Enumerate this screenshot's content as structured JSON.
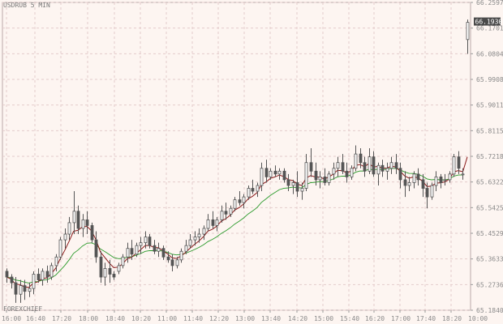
{
  "window": {
    "symbol_label": "USDRUB 5 MIN",
    "watermark": "FOREXCHIEF",
    "current_price": "66.1930"
  },
  "chart_data": {
    "type": "candlestick",
    "title": "USDRUB 5 MIN",
    "y_ticks": [
      "66.2597",
      "66.1701",
      "66.0804",
      "65.9908",
      "65.9011",
      "65.8115",
      "65.7218",
      "65.6322",
      "65.5425",
      "65.4529",
      "65.3633",
      "65.2736",
      "65.1840"
    ],
    "ylim": [
      65.184,
      66.2597
    ],
    "x_ticks": [
      "16:00",
      "16:40",
      "17:20",
      "18:00",
      "18:40",
      "10:20",
      "11:00",
      "11:40",
      "12:20",
      "13:00",
      "13:40",
      "14:20",
      "15:00",
      "15:40",
      "16:20",
      "17:00",
      "17:40",
      "18:20",
      "10:00"
    ],
    "candles": [
      [
        65.32,
        65.33,
        65.28,
        65.3
      ],
      [
        65.3,
        65.31,
        65.26,
        65.28
      ],
      [
        65.28,
        65.3,
        65.21,
        65.24
      ],
      [
        65.24,
        65.29,
        65.21,
        65.27
      ],
      [
        65.27,
        65.29,
        65.22,
        65.25
      ],
      [
        65.25,
        65.28,
        65.23,
        65.26
      ],
      [
        65.26,
        65.32,
        65.24,
        65.31
      ],
      [
        65.31,
        65.33,
        65.28,
        65.29
      ],
      [
        65.29,
        65.33,
        65.27,
        65.32
      ],
      [
        65.32,
        65.34,
        65.28,
        65.3
      ],
      [
        65.3,
        65.35,
        65.29,
        65.34
      ],
      [
        65.34,
        65.38,
        65.32,
        65.37
      ],
      [
        65.37,
        65.44,
        65.36,
        65.43
      ],
      [
        65.43,
        65.47,
        65.4,
        65.45
      ],
      [
        65.45,
        65.51,
        65.43,
        65.49
      ],
      [
        65.49,
        65.6,
        65.45,
        65.53
      ],
      [
        65.53,
        65.55,
        65.45,
        65.47
      ],
      [
        65.47,
        65.52,
        65.44,
        65.5
      ],
      [
        65.5,
        65.53,
        65.45,
        65.48
      ],
      [
        65.48,
        65.49,
        65.42,
        65.43
      ],
      [
        65.43,
        65.46,
        65.35,
        65.37
      ],
      [
        65.37,
        65.39,
        65.28,
        65.3
      ],
      [
        65.3,
        65.35,
        65.27,
        65.33
      ],
      [
        65.33,
        65.36,
        65.28,
        65.31
      ],
      [
        65.31,
        65.32,
        65.29,
        65.3
      ],
      [
        65.32,
        65.35,
        65.31,
        65.34
      ],
      [
        65.34,
        65.38,
        65.33,
        65.37
      ],
      [
        65.37,
        65.42,
        65.35,
        65.4
      ],
      [
        65.4,
        65.43,
        65.36,
        65.38
      ],
      [
        65.38,
        65.42,
        65.37,
        65.41
      ],
      [
        65.41,
        65.44,
        65.38,
        65.42
      ],
      [
        65.42,
        65.46,
        65.4,
        65.44
      ],
      [
        65.44,
        65.45,
        65.4,
        65.41
      ],
      [
        65.41,
        65.43,
        65.38,
        65.39
      ],
      [
        65.39,
        65.42,
        65.37,
        65.4
      ],
      [
        65.4,
        65.41,
        65.36,
        65.37
      ],
      [
        65.37,
        65.39,
        65.35,
        65.36
      ],
      [
        65.36,
        65.38,
        65.32,
        65.34
      ],
      [
        65.34,
        65.37,
        65.33,
        65.36
      ],
      [
        65.36,
        65.4,
        65.35,
        65.39
      ],
      [
        65.39,
        65.43,
        65.38,
        65.41
      ],
      [
        65.41,
        65.45,
        65.4,
        65.43
      ],
      [
        65.43,
        65.46,
        65.41,
        65.44
      ],
      [
        65.44,
        65.47,
        65.42,
        65.45
      ],
      [
        65.45,
        65.48,
        65.43,
        65.47
      ],
      [
        65.47,
        65.52,
        65.46,
        65.5
      ],
      [
        65.5,
        65.53,
        65.47,
        65.48
      ],
      [
        65.48,
        65.51,
        65.46,
        65.5
      ],
      [
        65.5,
        65.55,
        65.49,
        65.53
      ],
      [
        65.53,
        65.56,
        65.5,
        65.52
      ],
      [
        65.52,
        65.55,
        65.51,
        65.54
      ],
      [
        65.54,
        65.58,
        65.53,
        65.57
      ],
      [
        65.57,
        65.6,
        65.55,
        65.56
      ],
      [
        65.56,
        65.59,
        65.54,
        65.58
      ],
      [
        65.58,
        65.62,
        65.57,
        65.61
      ],
      [
        65.61,
        65.64,
        65.59,
        65.6
      ],
      [
        65.6,
        65.63,
        65.58,
        65.62
      ],
      [
        65.62,
        65.7,
        65.6,
        65.68
      ],
      [
        65.68,
        65.71,
        65.63,
        65.65
      ],
      [
        65.65,
        65.68,
        65.64,
        65.67
      ],
      [
        65.67,
        65.69,
        65.65,
        65.66
      ],
      [
        65.66,
        65.68,
        65.64,
        65.67
      ],
      [
        65.67,
        65.68,
        65.63,
        65.64
      ],
      [
        65.64,
        65.66,
        65.6,
        65.62
      ],
      [
        65.62,
        65.64,
        65.59,
        65.63
      ],
      [
        65.63,
        65.67,
        65.58,
        65.6
      ],
      [
        65.6,
        65.63,
        65.57,
        65.61
      ],
      [
        65.61,
        65.73,
        65.6,
        65.7
      ],
      [
        65.7,
        65.75,
        65.65,
        65.67
      ],
      [
        65.67,
        65.7,
        65.62,
        65.64
      ],
      [
        65.64,
        65.67,
        65.61,
        65.65
      ],
      [
        65.65,
        65.68,
        65.62,
        65.63
      ],
      [
        65.63,
        65.67,
        65.62,
        65.66
      ],
      [
        65.66,
        65.7,
        65.64,
        65.68
      ],
      [
        65.68,
        65.72,
        65.65,
        65.7
      ],
      [
        65.7,
        65.73,
        65.66,
        65.67
      ],
      [
        65.67,
        65.7,
        65.63,
        65.65
      ],
      [
        65.65,
        65.69,
        65.64,
        65.68
      ],
      [
        65.68,
        65.76,
        65.67,
        65.73
      ],
      [
        65.73,
        65.75,
        65.68,
        65.7
      ],
      [
        65.7,
        65.72,
        65.65,
        65.67
      ],
      [
        65.67,
        65.75,
        65.66,
        65.72
      ],
      [
        65.72,
        65.74,
        65.65,
        65.66
      ],
      [
        65.66,
        65.7,
        65.62,
        65.69
      ],
      [
        65.69,
        65.71,
        65.65,
        65.67
      ],
      [
        65.67,
        65.7,
        65.64,
        65.68
      ],
      [
        65.68,
        65.72,
        65.66,
        65.7
      ],
      [
        65.7,
        65.73,
        65.66,
        65.68
      ],
      [
        65.68,
        65.7,
        65.61,
        65.64
      ],
      [
        65.64,
        65.67,
        65.58,
        65.62
      ],
      [
        65.62,
        65.65,
        65.6,
        65.63
      ],
      [
        65.63,
        65.67,
        65.61,
        65.66
      ],
      [
        65.66,
        65.68,
        65.62,
        65.64
      ],
      [
        65.64,
        65.66,
        65.58,
        65.61
      ],
      [
        65.61,
        65.63,
        65.54,
        65.58
      ],
      [
        65.58,
        65.63,
        65.57,
        65.62
      ],
      [
        65.62,
        65.67,
        65.6,
        65.65
      ],
      [
        65.65,
        65.66,
        65.61,
        65.63
      ],
      [
        65.64,
        65.66,
        65.62,
        65.64
      ],
      [
        65.64,
        65.67,
        65.63,
        65.66
      ],
      [
        65.66,
        65.73,
        65.65,
        65.72
      ],
      [
        65.72,
        65.74,
        65.66,
        65.68
      ],
      [
        65.66,
        65.68,
        65.64,
        65.66
      ],
      [
        66.13,
        66.2,
        66.08,
        66.19
      ]
    ]
  },
  "colors": {
    "background": "#fdf5f1",
    "grid": "#e4cccc",
    "candle": "#555555",
    "fast_ma": "#8b1a1a",
    "slow_ma": "#2a9a2a",
    "price_label_bg": "#4a4a4a"
  }
}
